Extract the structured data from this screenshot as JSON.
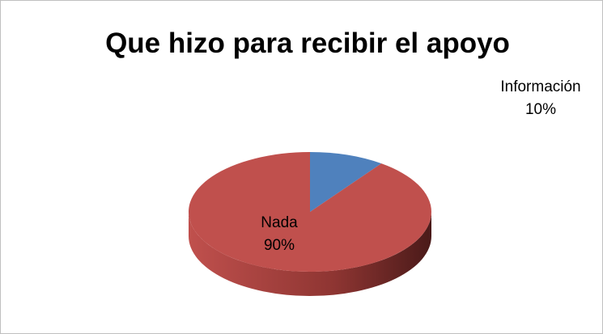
{
  "chart_data": {
    "type": "pie",
    "title": "Que hizo para recibir el apoyo",
    "categories": [
      "Información",
      "Nada"
    ],
    "values": [
      10,
      90
    ],
    "value_labels": [
      "10%",
      "90%"
    ],
    "colors": [
      "#4f81bd",
      "#c0504d"
    ],
    "3d": true
  }
}
